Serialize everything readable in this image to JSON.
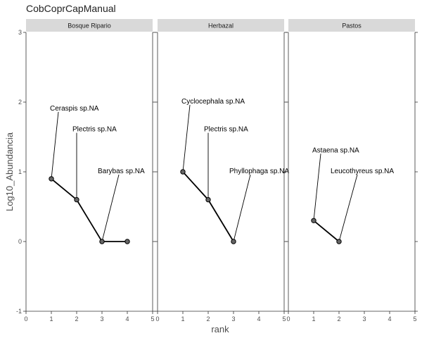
{
  "chart_data": {
    "type": "line",
    "title": "CobCoprCapManual",
    "xlabel": "rank",
    "ylabel": "Log10_Abundancia",
    "xlim": [
      0,
      5
    ],
    "ylim": [
      -1,
      3
    ],
    "x_ticks": [
      "0",
      "1",
      "2",
      "3",
      "4",
      "5"
    ],
    "y_ticks": [
      "-1",
      "0",
      "1",
      "2",
      "3"
    ],
    "grid": false,
    "colors": {
      "strip_bg": "#d9d9d9",
      "point_fill": "#666666",
      "line": "#000000",
      "axis": "#333333"
    },
    "facets": [
      {
        "name": "Bosque Ripario",
        "points": [
          {
            "x": 1,
            "y": 0.9
          },
          {
            "x": 2,
            "y": 0.6
          },
          {
            "x": 3,
            "y": 0.0
          },
          {
            "x": 4,
            "y": 0.0
          }
        ],
        "labels": [
          {
            "text": "Ceraspis sp.NA",
            "x": 1.0,
            "y": 1.9
          },
          {
            "text": "Plectris sp.NA",
            "x": 2.0,
            "y": 1.6
          },
          {
            "text": "Barybas sp.NA",
            "x": 3.0,
            "y": 1.0
          }
        ]
      },
      {
        "name": "Herbazal",
        "points": [
          {
            "x": 1,
            "y": 1.0
          },
          {
            "x": 2,
            "y": 0.6
          },
          {
            "x": 3,
            "y": 0.0
          }
        ],
        "labels": [
          {
            "text": "Cyclocephala sp.NA",
            "x": 1.0,
            "y": 2.0
          },
          {
            "text": "Plectris sp.NA",
            "x": 2.0,
            "y": 1.6
          },
          {
            "text": "Phyllophaga sp.NA",
            "x": 3.0,
            "y": 1.0
          }
        ]
      },
      {
        "name": "Pastos",
        "points": [
          {
            "x": 1,
            "y": 0.3
          },
          {
            "x": 2,
            "y": 0.0
          }
        ],
        "labels": [
          {
            "text": "Astaena sp.NA",
            "x": 1.0,
            "y": 1.3
          },
          {
            "text": "Leucothyreus sp.NA",
            "x": 2.0,
            "y": 1.0
          }
        ]
      }
    ]
  }
}
